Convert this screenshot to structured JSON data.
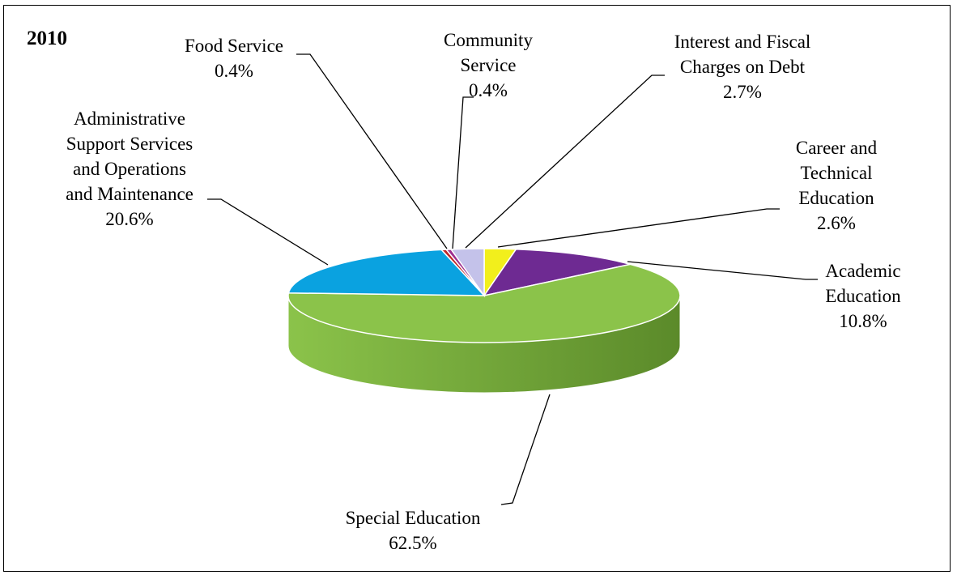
{
  "chart_data": {
    "type": "pie",
    "title": "2010",
    "slices": [
      {
        "label": "Special Education",
        "value": 62.5,
        "display": "62.5%",
        "color": "#8bc34a",
        "side_color": "#5b8a2a"
      },
      {
        "label": "Administrative Support Services and Operations and Maintenance",
        "value": 20.6,
        "display": "20.6%",
        "color": "#0aa2e0",
        "side_color": "#0a6f99"
      },
      {
        "label": "Food Service",
        "value": 0.4,
        "display": "0.4%",
        "color": "#c0282b",
        "side_color": "#801a1c"
      },
      {
        "label": "Community Service",
        "value": 0.4,
        "display": "0.4%",
        "color": "#9d2e8f",
        "side_color": "#6a1f60"
      },
      {
        "label": "Interest and Fiscal Charges on Debt",
        "value": 2.7,
        "display": "2.7%",
        "color": "#c4c2ea",
        "side_color": "#8f8cb8"
      },
      {
        "label": "Career and Technical Education",
        "value": 2.6,
        "display": "2.6%",
        "color": "#f2ef1c",
        "side_color": "#b5b00f"
      },
      {
        "label": "Academic Education",
        "value": 10.8,
        "display": "10.8%",
        "color": "#6e2a92",
        "side_color": "#4a1b63"
      }
    ],
    "label_lines": {
      "Special Education": [
        "Special Education"
      ],
      "Administrative Support Services and Operations and Maintenance": [
        "Administrative",
        "Support Services",
        "and Operations",
        "and Maintenance"
      ],
      "Food Service": [
        "Food Service"
      ],
      "Community Service": [
        "Community",
        "Service"
      ],
      "Interest and Fiscal Charges on Debt": [
        "Interest and Fiscal",
        "Charges on Debt"
      ],
      "Career and Technical Education": [
        "Career and",
        "Technical",
        "Education"
      ],
      "Academic Education": [
        "Academic",
        "Education"
      ]
    },
    "legend": "none",
    "style": "3d-pie"
  }
}
